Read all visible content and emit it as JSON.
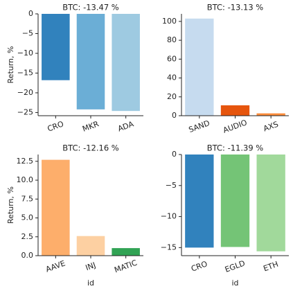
{
  "chart_data": [
    {
      "type": "bar",
      "title": "BTC: -13.47 %",
      "ylabel": "Return, %",
      "categories": [
        "CRO",
        "MKR",
        "ADA"
      ],
      "values": [
        -16.8,
        -24.2,
        -24.6
      ],
      "colors": [
        "#3182bd",
        "#6baed6",
        "#9ecae1"
      ],
      "ylim": [
        -25.8,
        0
      ],
      "yticks": [
        {
          "value": -25,
          "label": "−25"
        },
        {
          "value": -20,
          "label": "−20"
        },
        {
          "value": -15,
          "label": "−15"
        },
        {
          "value": -10,
          "label": "−10"
        },
        {
          "value": -5,
          "label": "−5"
        },
        0
      ]
    },
    {
      "type": "bar",
      "title": "BTC: -13.13 %",
      "categories": [
        "SAND",
        "AUDIO",
        "AXS"
      ],
      "values": [
        103,
        11,
        2.5
      ],
      "colors": [
        "#c6dbef",
        "#e6550d",
        "#fd8d3c"
      ],
      "ylim": [
        0,
        108
      ],
      "yticks": [
        0,
        20,
        40,
        60,
        80,
        100
      ]
    },
    {
      "type": "bar",
      "title": "BTC: -12.16 %",
      "ylabel": "Return, %",
      "xlabel": "id",
      "categories": [
        "AAVE",
        "INJ",
        "MATIC"
      ],
      "values": [
        12.7,
        2.6,
        1.0
      ],
      "colors": [
        "#fdae6b",
        "#fdd0a2",
        "#31a354"
      ],
      "ylim": [
        0,
        13.4
      ],
      "yticks": [
        {
          "value": 0,
          "label": "0.0"
        },
        2.5,
        {
          "value": 5,
          "label": "5.0"
        },
        7.5,
        {
          "value": 10,
          "label": "10.0"
        },
        12.5
      ]
    },
    {
      "type": "bar",
      "title": "BTC: -11.39 %",
      "xlabel": "id",
      "categories": [
        "CRO",
        "EGLD",
        "ETH"
      ],
      "values": [
        -15.0,
        -14.9,
        -15.6
      ],
      "colors": [
        "#3182bd",
        "#74c476",
        "#a1d99b"
      ],
      "ylim": [
        -16.3,
        0
      ],
      "yticks": [
        {
          "value": -15,
          "label": "−15"
        },
        {
          "value": -10,
          "label": "−10"
        },
        {
          "value": -5,
          "label": "−5"
        },
        0
      ]
    }
  ]
}
